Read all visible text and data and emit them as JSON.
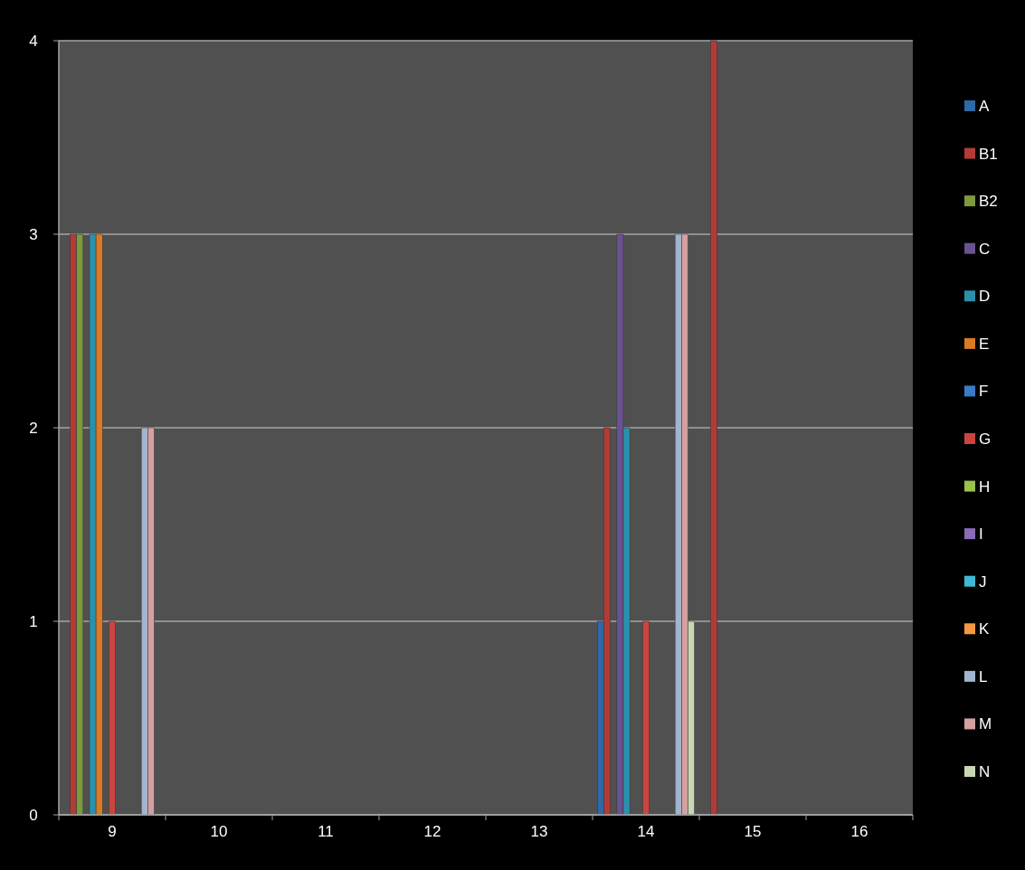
{
  "chart_data": {
    "type": "bar",
    "categories": [
      "9",
      "10",
      "11",
      "12",
      "13",
      "14",
      "15",
      "16"
    ],
    "ylim": [
      0,
      4
    ],
    "yticks": [
      0,
      1,
      2,
      3,
      4
    ],
    "grid": "y",
    "legend": "right",
    "series": [
      {
        "name": "A",
        "color": "#2e6aa8",
        "values": [
          0,
          0,
          0,
          0,
          0,
          1,
          0,
          0
        ]
      },
      {
        "name": "B1",
        "color": "#b23b37",
        "values": [
          3,
          0,
          0,
          0,
          0,
          2,
          4,
          0
        ]
      },
      {
        "name": "B2",
        "color": "#7e9a3e",
        "values": [
          3,
          0,
          0,
          0,
          0,
          0,
          0,
          0
        ]
      },
      {
        "name": "C",
        "color": "#6a5190",
        "values": [
          0,
          0,
          0,
          0,
          0,
          3,
          0,
          0
        ]
      },
      {
        "name": "D",
        "color": "#2a91ad",
        "values": [
          3,
          0,
          0,
          0,
          0,
          2,
          0,
          0
        ]
      },
      {
        "name": "E",
        "color": "#db7a24",
        "values": [
          3,
          0,
          0,
          0,
          0,
          0,
          0,
          0
        ]
      },
      {
        "name": "F",
        "color": "#3a7cc4",
        "values": [
          0,
          0,
          0,
          0,
          0,
          0,
          0,
          0
        ]
      },
      {
        "name": "G",
        "color": "#cc4440",
        "values": [
          1,
          0,
          0,
          0,
          0,
          1,
          0,
          0
        ]
      },
      {
        "name": "H",
        "color": "#9bc14f",
        "values": [
          0,
          0,
          0,
          0,
          0,
          0,
          0,
          0
        ]
      },
      {
        "name": "I",
        "color": "#8a6bb8",
        "values": [
          0,
          0,
          0,
          0,
          0,
          0,
          0,
          0
        ]
      },
      {
        "name": "J",
        "color": "#3fb9d4",
        "values": [
          0,
          0,
          0,
          0,
          0,
          0,
          0,
          0
        ]
      },
      {
        "name": "K",
        "color": "#f39a40",
        "values": [
          0,
          0,
          0,
          0,
          0,
          0,
          0,
          0
        ]
      },
      {
        "name": "L",
        "color": "#a3b4cf",
        "values": [
          2,
          0,
          0,
          0,
          0,
          3,
          0,
          0
        ]
      },
      {
        "name": "M",
        "color": "#d4a0a0",
        "values": [
          2,
          0,
          0,
          0,
          0,
          3,
          0,
          0
        ]
      },
      {
        "name": "N",
        "color": "#c9d6b4",
        "values": [
          0,
          0,
          0,
          0,
          0,
          1,
          0,
          0
        ]
      }
    ]
  }
}
